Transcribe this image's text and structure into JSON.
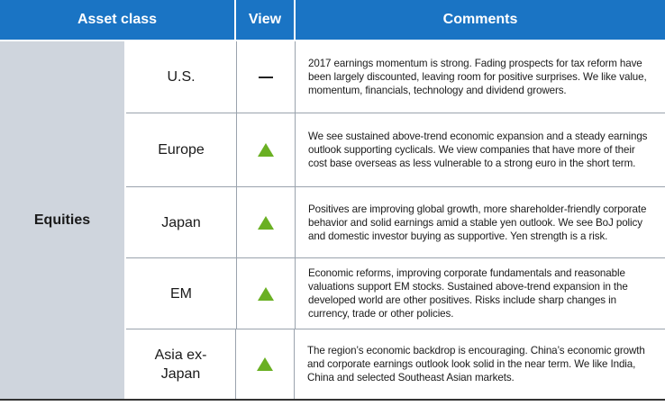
{
  "header": {
    "asset_class": "Asset class",
    "view": "View",
    "comments": "Comments"
  },
  "category": "Equities",
  "colors": {
    "header_blue": "#1a74c4",
    "category_gray": "#cfd5dd",
    "positive_green": "#6ab023"
  },
  "rows": [
    {
      "asset": "U.S.",
      "view": "neutral",
      "view_icon": "dash-icon",
      "comment": "2017 earnings momentum is strong. Fading prospects for tax reform have been largely discounted, leaving room for positive surprises. We like value, momentum, financials, technology and dividend growers."
    },
    {
      "asset": "Europe",
      "view": "overweight",
      "view_icon": "up-triangle-icon",
      "comment": "We see sustained above-trend economic expansion and a steady earnings outlook supporting cyclicals. We view companies that have more of their cost base overseas as less vulnerable to a strong euro in the short term."
    },
    {
      "asset": "Japan",
      "view": "overweight",
      "view_icon": "up-triangle-icon",
      "comment": "Positives are improving global growth, more shareholder-friendly corporate behavior and solid earnings amid a stable yen outlook. We see BoJ policy and domestic investor buying as supportive. Yen strength is a risk."
    },
    {
      "asset": "EM",
      "view": "overweight",
      "view_icon": "up-triangle-icon",
      "comment": "Economic reforms, improving corporate fundamentals and reasonable valuations support EM stocks. Sustained above-trend expansion in the developed world are other positives. Risks include sharp changes in currency, trade or other policies."
    },
    {
      "asset": "Asia ex-Japan",
      "view": "overweight",
      "view_icon": "up-triangle-icon",
      "comment": "The region’s economic backdrop is encouraging. China’s economic growth and corporate earnings outlook look solid in the near term. We like India, China and selected Southeast Asian markets."
    }
  ]
}
